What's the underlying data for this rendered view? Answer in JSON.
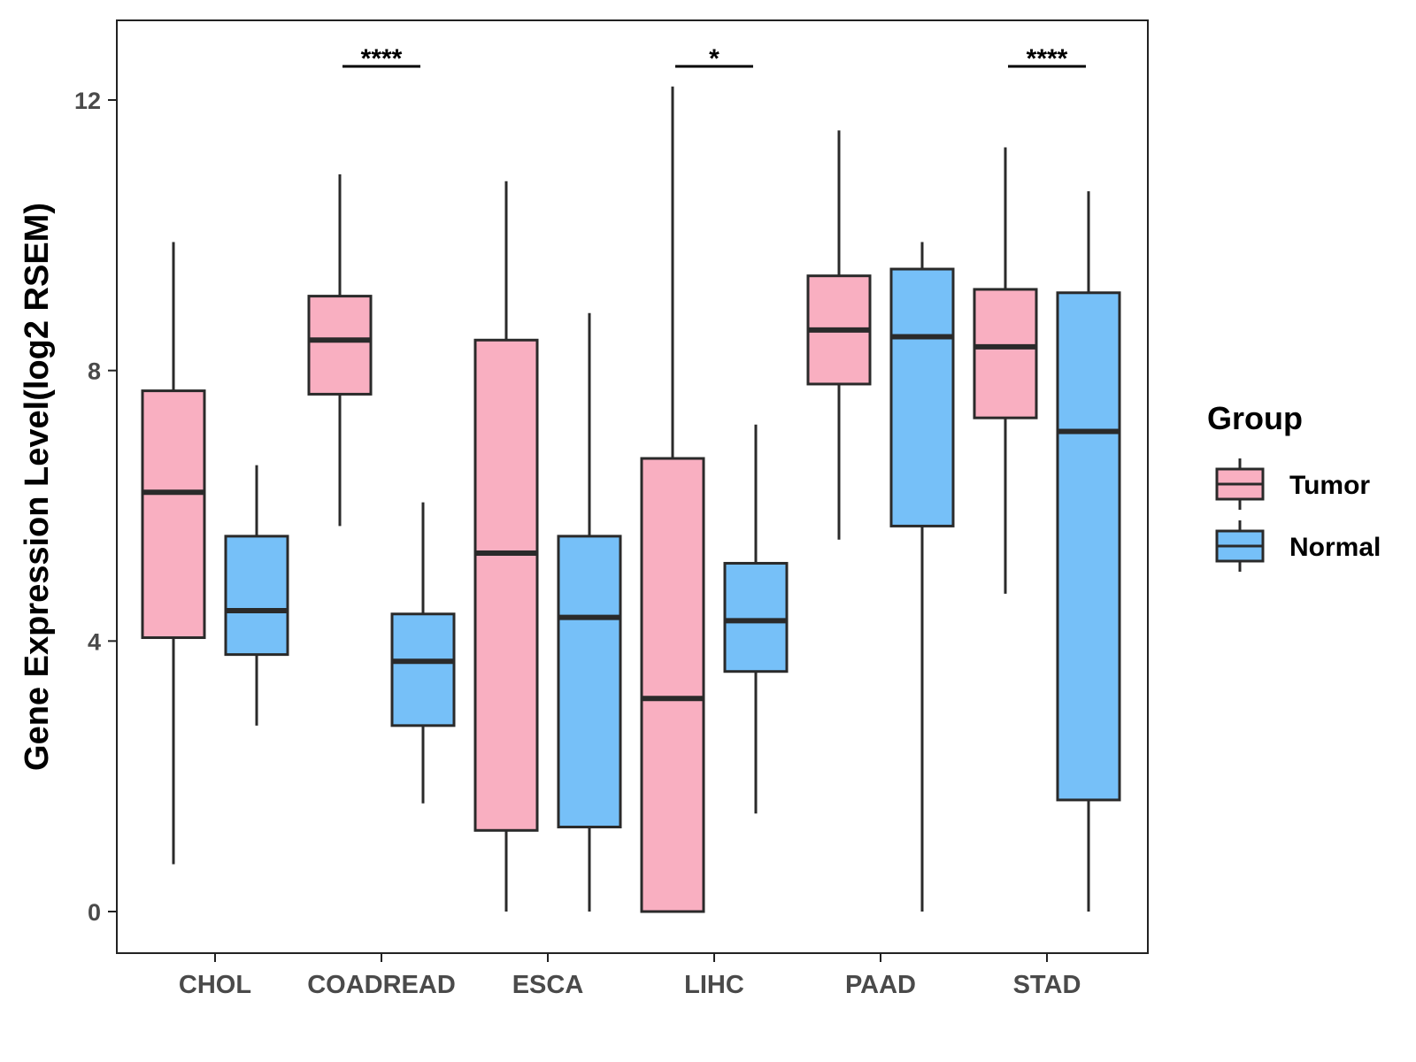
{
  "chart_data": {
    "type": "boxplot",
    "ylabel": "Gene Expression Level(log2 RSEM)",
    "xlabel": "",
    "ylim": [
      -0.6,
      13.2
    ],
    "yticks": [
      0,
      4,
      8,
      12
    ],
    "categories": [
      "CHOL",
      "COADREAD",
      "ESCA",
      "LIHC",
      "PAAD",
      "STAD"
    ],
    "legend": {
      "title": "Group",
      "position": "right",
      "entries": [
        "Tumor",
        "Normal"
      ]
    },
    "colors": {
      "Tumor": "#F9AFC1",
      "Normal": "#76C0F8",
      "outline": "#2a2a2a"
    },
    "series": [
      {
        "name": "Tumor",
        "boxes": [
          {
            "category": "CHOL",
            "min": 0.7,
            "q1": 4.05,
            "median": 6.2,
            "q3": 7.7,
            "max": 9.9
          },
          {
            "category": "COADREAD",
            "min": 5.7,
            "q1": 7.65,
            "median": 8.45,
            "q3": 9.1,
            "max": 10.9
          },
          {
            "category": "ESCA",
            "min": 0.0,
            "q1": 1.2,
            "median": 5.3,
            "q3": 8.45,
            "max": 10.8
          },
          {
            "category": "LIHC",
            "min": 0.0,
            "q1": 0.0,
            "median": 3.15,
            "q3": 6.7,
            "max": 12.2
          },
          {
            "category": "PAAD",
            "min": 5.5,
            "q1": 7.8,
            "median": 8.6,
            "q3": 9.4,
            "max": 11.55
          },
          {
            "category": "STAD",
            "min": 4.7,
            "q1": 7.3,
            "median": 8.35,
            "q3": 9.2,
            "max": 11.3
          }
        ]
      },
      {
        "name": "Normal",
        "boxes": [
          {
            "category": "CHOL",
            "min": 2.75,
            "q1": 3.8,
            "median": 4.45,
            "q3": 5.55,
            "max": 6.6
          },
          {
            "category": "COADREAD",
            "min": 1.6,
            "q1": 2.75,
            "median": 3.7,
            "q3": 4.4,
            "max": 6.05
          },
          {
            "category": "ESCA",
            "min": 0.0,
            "q1": 1.25,
            "median": 4.35,
            "q3": 5.55,
            "max": 8.85
          },
          {
            "category": "LIHC",
            "min": 1.45,
            "q1": 3.55,
            "median": 4.3,
            "q3": 5.15,
            "max": 7.2
          },
          {
            "category": "PAAD",
            "min": 0.0,
            "q1": 5.7,
            "median": 8.5,
            "q3": 9.5,
            "max": 9.9
          },
          {
            "category": "STAD",
            "min": 0.0,
            "q1": 1.65,
            "median": 7.1,
            "q3": 9.15,
            "max": 10.65
          }
        ]
      }
    ],
    "significance": [
      {
        "category": "COADREAD",
        "label": "****"
      },
      {
        "category": "LIHC",
        "label": "*"
      },
      {
        "category": "STAD",
        "label": "****"
      }
    ]
  }
}
